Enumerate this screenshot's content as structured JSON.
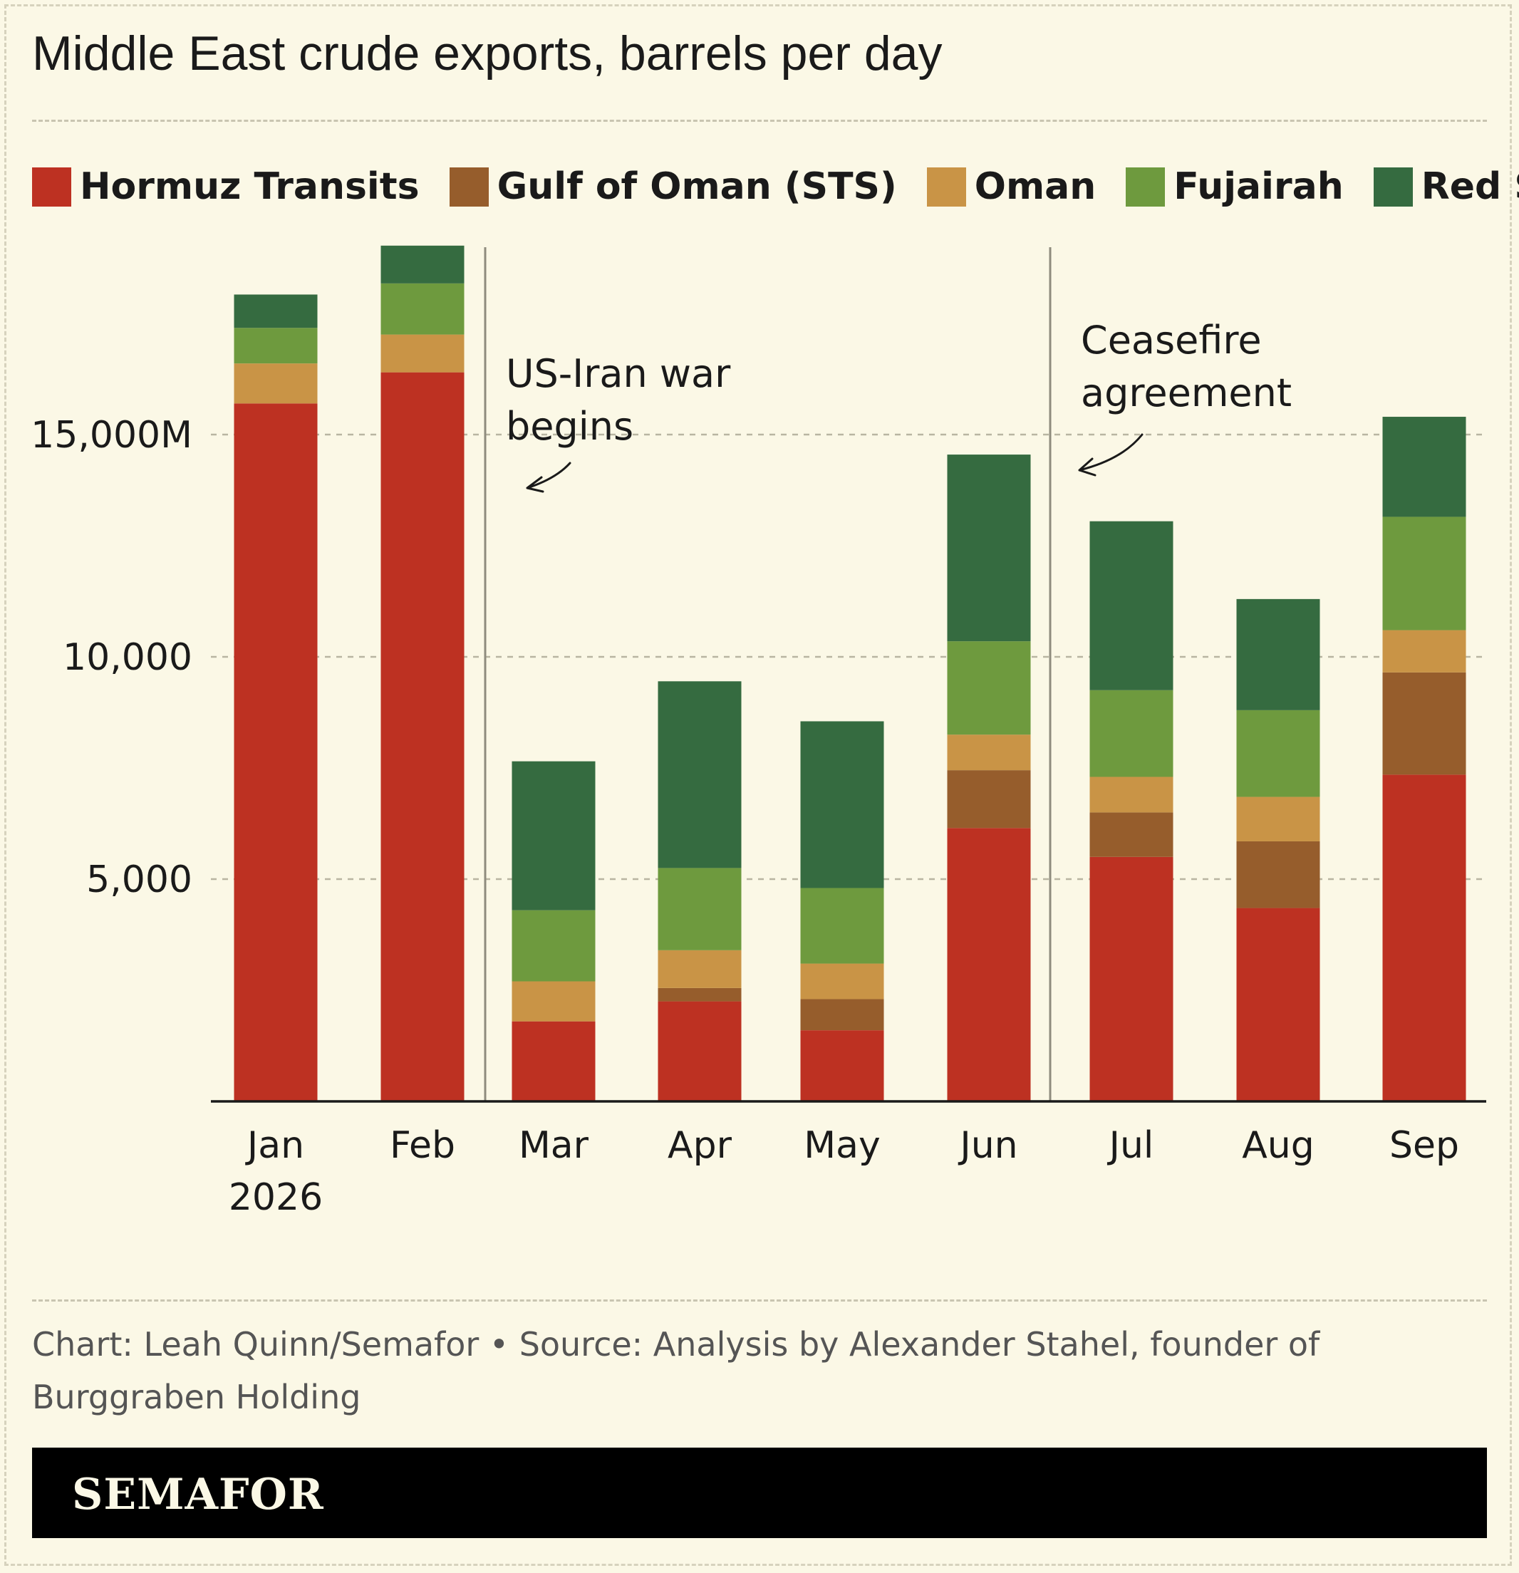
{
  "title": "Middle East crude exports, barrels per day",
  "colors": {
    "background": "#fbf8e6",
    "hormuz": "#bd3122",
    "gulf_of_oman": "#965d2c",
    "oman": "#c99446",
    "fujairah": "#6e9a3e",
    "red_sea": "#356b40"
  },
  "chart_data": {
    "type": "bar",
    "stacked": true,
    "title": "Middle East crude exports, barrels per day",
    "categories": [
      "Jan",
      "Feb",
      "Mar",
      "Apr",
      "May",
      "Jun",
      "Jul",
      "Aug",
      "Sep"
    ],
    "category_sublabels": [
      "2026",
      "",
      "",
      "",
      "",
      "",
      "",
      "",
      ""
    ],
    "series": [
      {
        "name": "Hormuz Transits",
        "color": "#bd3122",
        "values": [
          15700,
          16400,
          1800,
          2250,
          1600,
          6150,
          5500,
          4350,
          7350
        ]
      },
      {
        "name": "Gulf of Oman (STS)",
        "color": "#965d2c",
        "values": [
          0,
          0,
          0,
          300,
          700,
          1300,
          1000,
          1500,
          2300
        ]
      },
      {
        "name": "Oman",
        "color": "#c99446",
        "values": [
          900,
          850,
          900,
          850,
          800,
          800,
          800,
          1000,
          950
        ]
      },
      {
        "name": "Fujairah",
        "color": "#6e9a3e",
        "values": [
          800,
          1150,
          1600,
          1850,
          1700,
          2100,
          1950,
          1950,
          2550
        ]
      },
      {
        "name": "Red Sea",
        "color": "#356b40",
        "values": [
          750,
          850,
          3350,
          4200,
          3750,
          4200,
          3800,
          2500,
          2250
        ]
      }
    ],
    "y_ticks": [
      {
        "value": 5000,
        "label": "5,000"
      },
      {
        "value": 10000,
        "label": "10,000"
      },
      {
        "value": 15000,
        "label": "15,000M"
      }
    ],
    "ylim": [
      0,
      19500
    ],
    "grid": true,
    "legend_position": "top-left",
    "annotations": [
      {
        "text": [
          "US-Iran war",
          "begins"
        ],
        "between": [
          "Feb",
          "Mar"
        ]
      },
      {
        "text": [
          "Ceasefire",
          "agreement"
        ],
        "between": [
          "Jun",
          "Jul"
        ]
      }
    ]
  },
  "footer": {
    "credit": "Chart: Leah Quinn/Semafor • Source: Analysis by Alexander Stahel, founder of Burggraben Holding",
    "logo": "SEMAFOR"
  }
}
